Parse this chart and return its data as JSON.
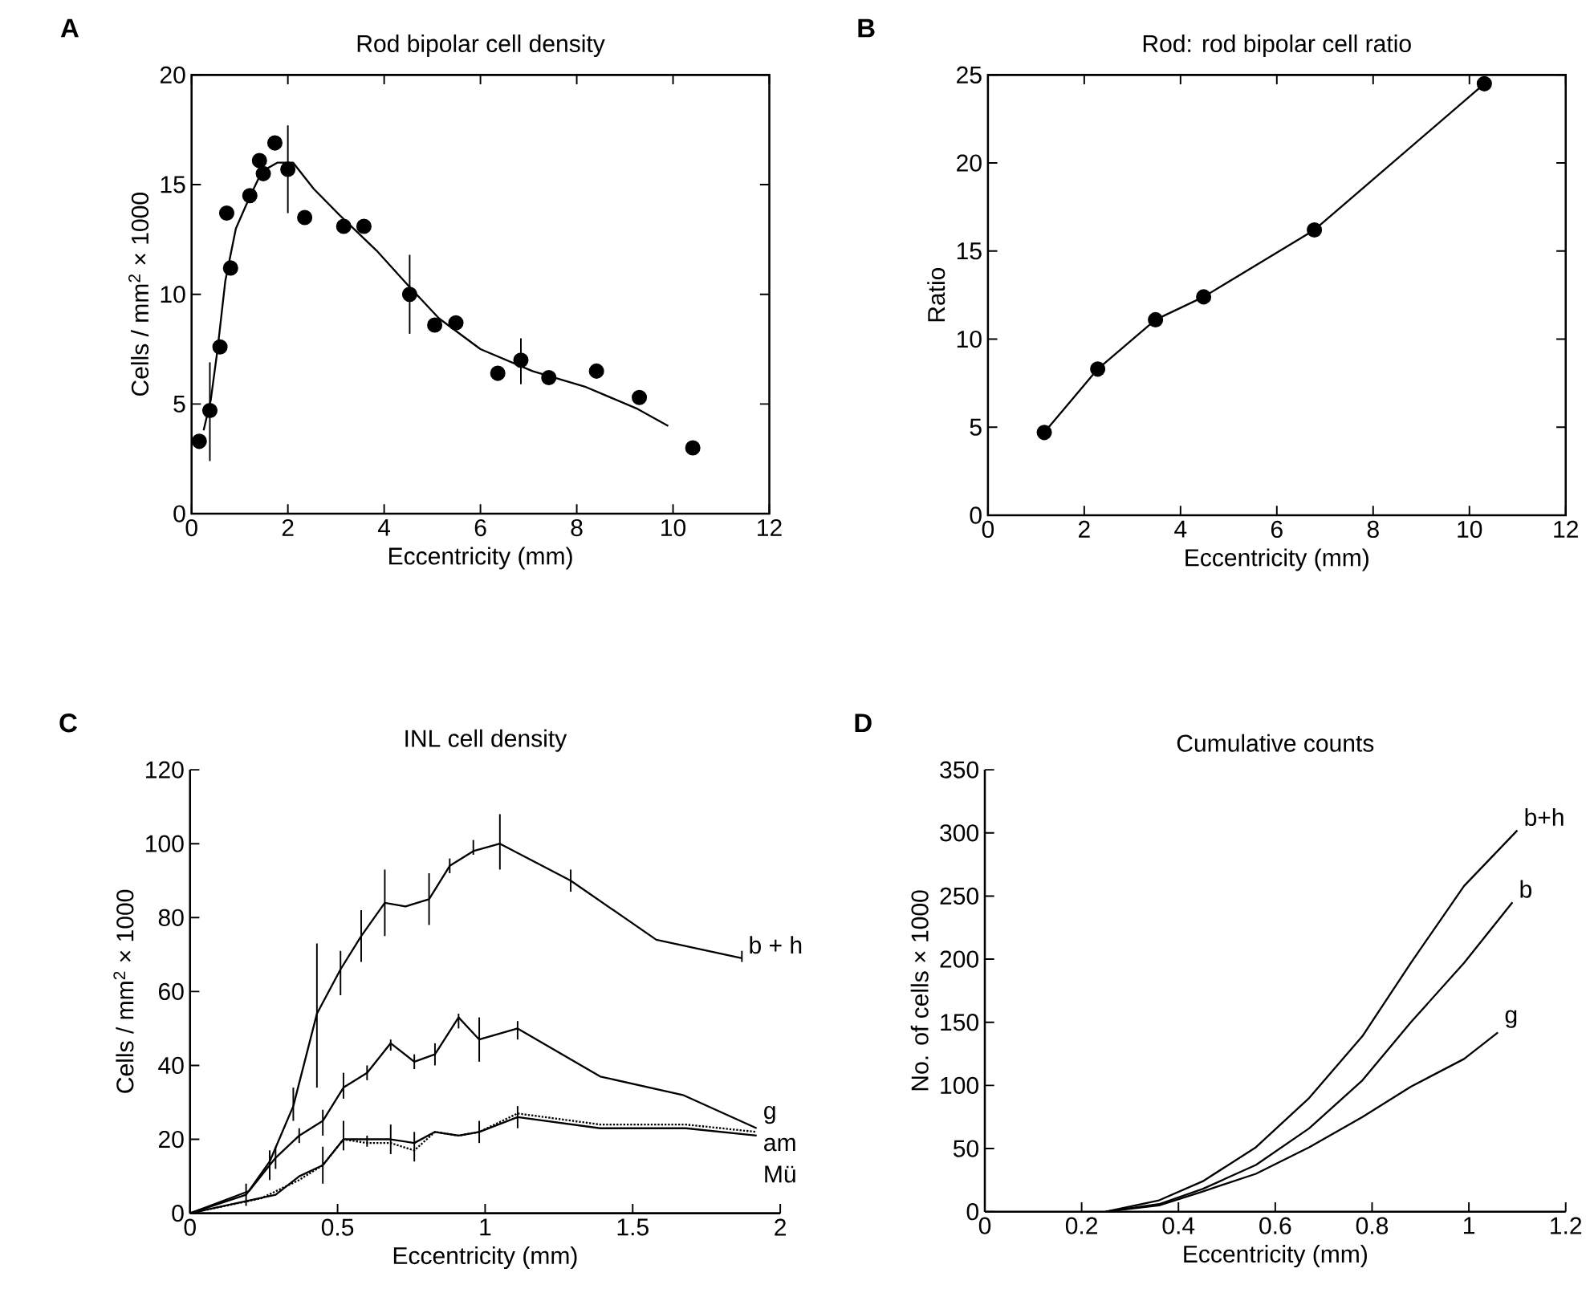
{
  "chart_data": [
    {
      "type": "scatter",
      "title": "Rod  bipolar  cell  density",
      "xlabel": "Eccentricity  (mm)",
      "ylabel": "Cells / mm$^{2}$ × 1000",
      "annotations": [
        "A"
      ],
      "xlim": [
        0,
        12
      ],
      "ylim": [
        0,
        20
      ],
      "xticks": [
        0,
        2,
        4,
        6,
        8,
        10,
        12
      ],
      "yticks": [
        0,
        5,
        10,
        15,
        20
      ],
      "series": [
        {
          "type": "scatter",
          "color": "#000000",
          "marker": "circle",
          "x": [
            0.16,
            0.38,
            0.59,
            0.73,
            0.81,
            1.21,
            1.41,
            1.49,
            1.73,
            2.0,
            2.35,
            3.16,
            3.58,
            4.53,
            5.05,
            5.49,
            6.36,
            6.84,
            7.42,
            8.41,
            9.3,
            10.41
          ],
          "values": [
            3.3,
            4.7,
            7.6,
            13.7,
            11.2,
            14.5,
            16.1,
            15.5,
            16.9,
            15.7,
            13.5,
            13.1,
            13.1,
            10.0,
            8.6,
            8.7,
            6.4,
            7.0,
            6.2,
            6.5,
            5.3,
            3.0
          ],
          "errors": [
            null,
            [
              2.4,
              6.9
            ],
            null,
            null,
            null,
            null,
            null,
            null,
            null,
            [
              13.7,
              17.7
            ],
            null,
            null,
            null,
            [
              8.2,
              11.8
            ],
            null,
            null,
            null,
            [
              5.9,
              8.0
            ],
            null,
            null,
            null,
            null
          ]
        },
        {
          "type": "line",
          "color": "#000000",
          "x": [
            0.25,
            0.4,
            0.54,
            0.7,
            0.92,
            1.2,
            1.46,
            1.78,
            2.11,
            2.54,
            3.08,
            3.84,
            4.5,
            5.14,
            6.0,
            7.08,
            8.16,
            9.24,
            9.9
          ],
          "values": [
            3.8,
            5.2,
            7.5,
            10.6,
            13.0,
            14.4,
            15.6,
            16.0,
            16.0,
            14.8,
            13.6,
            12.0,
            10.4,
            8.9,
            7.5,
            6.5,
            5.8,
            4.8,
            4.0
          ]
        }
      ]
    },
    {
      "type": "line",
      "title": "Rod:  rod  bipolar  cell  ratio",
      "xlabel": "Eccentricity  (mm)",
      "ylabel": "Ratio",
      "annotations": [
        "B"
      ],
      "xlim": [
        0,
        12
      ],
      "ylim": [
        0,
        25
      ],
      "xticks": [
        0,
        2,
        4,
        6,
        8,
        10,
        12
      ],
      "yticks": [
        0,
        5,
        10,
        15,
        20,
        25
      ],
      "series": [
        {
          "color": "#000000",
          "marker": "circle",
          "x": [
            1.17,
            2.28,
            3.48,
            4.48,
            6.78,
            10.31
          ],
          "values": [
            4.7,
            8.3,
            11.1,
            12.4,
            16.2,
            24.5
          ]
        }
      ]
    },
    {
      "type": "line",
      "title": "INL  cell  density",
      "xlabel": "Eccentricity  (mm)",
      "ylabel": "Cells / mm$^{2}$ × 1000",
      "annotations": [
        "C"
      ],
      "xlim": [
        0,
        2
      ],
      "ylim": [
        0,
        120
      ],
      "legend": "right",
      "xticks": [
        0,
        0.5,
        1,
        1.5,
        2
      ],
      "yticks": [
        0,
        20,
        40,
        60,
        80,
        100,
        120
      ],
      "series": [
        {
          "name": "b + h",
          "color": "#000000",
          "x": [
            0,
            0.19,
            0.27,
            0.35,
            0.43,
            0.51,
            0.58,
            0.66,
            0.73,
            0.81,
            0.88,
            0.96,
            1.05,
            1.29,
            1.58,
            1.87
          ],
          "values": [
            0,
            5,
            14,
            29,
            54,
            66,
            75,
            84,
            83,
            85,
            94,
            98,
            100,
            90,
            74,
            69
          ],
          "errors": [
            null,
            [
              2,
              8
            ],
            [
              9,
              17
            ],
            [
              25,
              34
            ],
            [
              34,
              73
            ],
            [
              59,
              71
            ],
            [
              68,
              82
            ],
            [
              75,
              93
            ],
            null,
            [
              78,
              92
            ],
            [
              92,
              96
            ],
            [
              97,
              101
            ],
            [
              93,
              108
            ],
            [
              87,
              93
            ],
            null,
            [
              68,
              71
            ]
          ]
        },
        {
          "name": "g",
          "color": "#000000",
          "x": [
            0,
            0.2,
            0.29,
            0.37,
            0.45,
            0.52,
            0.6,
            0.68,
            0.76,
            0.83,
            0.91,
            0.98,
            1.11,
            1.39,
            1.67,
            1.92
          ],
          "values": [
            0,
            6,
            15,
            21,
            25,
            34,
            38,
            46,
            41,
            43,
            53,
            47,
            50,
            37,
            32,
            23
          ],
          "errors": [
            null,
            null,
            [
              12,
              18
            ],
            [
              19,
              23
            ],
            [
              21,
              28
            ],
            [
              31,
              38
            ],
            [
              36,
              40
            ],
            [
              44,
              47
            ],
            [
              39,
              43
            ],
            [
              40,
              46
            ],
            [
              50,
              54
            ],
            [
              41,
              53
            ],
            [
              47,
              52
            ],
            null,
            null,
            null
          ]
        },
        {
          "name": "am",
          "color": "#000000",
          "line_style": "dotted",
          "x": [
            0,
            0.24,
            0.37,
            0.45,
            0.52,
            0.6,
            0.68,
            0.76,
            0.83,
            0.91,
            0.98,
            1.11,
            1.39,
            1.68,
            1.92
          ],
          "values": [
            0,
            4,
            9,
            13,
            20,
            19,
            19,
            17,
            22,
            21,
            22,
            27,
            24,
            24,
            22
          ]
        },
        {
          "name": "Mü",
          "color": "#000000",
          "x": [
            0,
            0.29,
            0.37,
            0.45,
            0.52,
            0.6,
            0.68,
            0.76,
            0.83,
            0.91,
            0.98,
            1.11,
            1.39,
            1.68,
            1.92
          ],
          "values": [
            0,
            5,
            10,
            13,
            20,
            20,
            20,
            19,
            22,
            21,
            22,
            26,
            23,
            23,
            21
          ],
          "errors": [
            null,
            null,
            null,
            [
              8,
              18
            ],
            [
              17,
              25
            ],
            [
              18,
              21
            ],
            [
              16,
              24
            ],
            [
              14,
              22
            ],
            null,
            null,
            [
              19,
              25
            ],
            [
              23,
              29
            ],
            null,
            null,
            null
          ]
        }
      ]
    },
    {
      "type": "line",
      "title": "Cumulative  counts",
      "xlabel": "Eccentricity  (mm)",
      "ylabel": "No.  of  cells × 1000",
      "annotations": [
        "D"
      ],
      "xlim": [
        0,
        1.2
      ],
      "ylim": [
        0,
        350
      ],
      "legend": "right",
      "xticks": [
        0,
        0.2,
        0.4,
        0.6,
        0.8,
        1,
        1.2
      ],
      "yticks": [
        0,
        50,
        100,
        150,
        200,
        250,
        300,
        350
      ],
      "series": [
        {
          "name": "b+h",
          "color": "#000000",
          "x": [
            0.25,
            0.36,
            0.45,
            0.56,
            0.67,
            0.78,
            0.88,
            0.99,
            1.1
          ],
          "values": [
            0,
            9,
            24,
            51,
            90,
            139,
            197,
            258,
            302
          ]
        },
        {
          "name": "b",
          "color": "#000000",
          "x": [
            0.25,
            0.36,
            0.45,
            0.56,
            0.67,
            0.78,
            0.88,
            0.99,
            1.09
          ],
          "values": [
            0,
            6,
            18,
            37,
            66,
            104,
            150,
            197,
            245
          ]
        },
        {
          "name": "g",
          "color": "#000000",
          "x": [
            0.25,
            0.36,
            0.45,
            0.56,
            0.67,
            0.78,
            0.88,
            0.99,
            1.06
          ],
          "values": [
            0,
            5,
            16,
            30,
            51,
            75,
            99,
            121,
            142
          ]
        }
      ]
    }
  ]
}
